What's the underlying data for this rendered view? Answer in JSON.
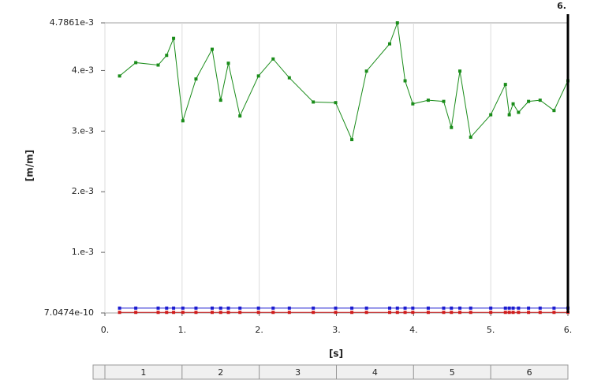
{
  "chart_data": {
    "type": "line",
    "xlabel": "[s]",
    "ylabel": "[m/m]",
    "x": [
      0.19,
      0.4,
      0.69,
      0.8,
      0.89,
      1.01,
      1.18,
      1.39,
      1.5,
      1.6,
      1.75,
      1.99,
      2.18,
      2.39,
      2.7,
      2.99,
      3.2,
      3.39,
      3.69,
      3.79,
      3.89,
      3.99,
      4.19,
      4.39,
      4.49,
      4.6,
      4.74,
      5.0,
      5.19,
      5.24,
      5.29,
      5.36,
      5.49,
      5.64,
      5.82,
      6.0
    ],
    "series": [
      {
        "color": "#1a8c1a",
        "values": [
          0.00391,
          0.00413,
          0.00409,
          0.00425,
          0.00453,
          0.00317,
          0.00386,
          0.00435,
          0.00351,
          0.00412,
          0.00325,
          0.00391,
          0.00419,
          0.00388,
          0.00348,
          0.00347,
          0.00286,
          0.00399,
          0.00444,
          0.0047861,
          0.00383,
          0.00345,
          0.00351,
          0.00349,
          0.00306,
          0.00399,
          0.0029,
          0.00327,
          0.00377,
          0.00327,
          0.00345,
          0.00331,
          0.00349,
          0.00351,
          0.00334,
          0.00383
        ]
      },
      {
        "color": "#1c1cd0",
        "values": [
          8e-05,
          8e-05,
          8e-05,
          8e-05,
          8e-05,
          8e-05,
          8e-05,
          8e-05,
          8e-05,
          8e-05,
          8e-05,
          8e-05,
          8e-05,
          8e-05,
          8e-05,
          8e-05,
          8e-05,
          8e-05,
          8e-05,
          8e-05,
          8e-05,
          8e-05,
          8e-05,
          8e-05,
          8e-05,
          8e-05,
          8e-05,
          8e-05,
          8e-05,
          8e-05,
          8e-05,
          8e-05,
          8e-05,
          8e-05,
          8e-05,
          8e-05
        ]
      },
      {
        "color": "#d01c1c",
        "values": [
          1e-05,
          1e-05,
          1e-05,
          1e-05,
          1e-05,
          1e-05,
          1e-05,
          1e-05,
          1e-05,
          1e-05,
          1e-05,
          1e-05,
          1e-05,
          1e-05,
          1e-05,
          1e-05,
          1e-05,
          1e-05,
          1e-05,
          1e-05,
          1e-05,
          1e-05,
          1e-05,
          1e-05,
          1e-05,
          1e-05,
          1e-05,
          1e-05,
          1e-05,
          1e-05,
          1e-05,
          1e-05,
          1e-05,
          1e-05,
          1e-05,
          1e-05
        ]
      }
    ],
    "xlim": [
      0,
      6
    ],
    "ylim": [
      7.0474e-10,
      0.0047861
    ],
    "xticks": [
      {
        "value": 0,
        "label": "0."
      },
      {
        "value": 1,
        "label": "1."
      },
      {
        "value": 2,
        "label": "2."
      },
      {
        "value": 3,
        "label": "3."
      },
      {
        "value": 4,
        "label": "4."
      },
      {
        "value": 5,
        "label": "5."
      },
      {
        "value": 6,
        "label": "6."
      }
    ],
    "yticks": [
      {
        "value": 7.0474e-10,
        "label": "7.0474e-10"
      },
      {
        "value": 0.001,
        "label": "1.e-3"
      },
      {
        "value": 0.002,
        "label": "2.e-3"
      },
      {
        "value": 0.003,
        "label": "3.e-3"
      },
      {
        "value": 0.004,
        "label": "4.e-3"
      },
      {
        "value": 0.0047861,
        "label": "4.7861e-3"
      }
    ],
    "grid": true,
    "cursor": {
      "value": 6,
      "label": "6."
    },
    "steps": [
      "1",
      "2",
      "3",
      "4",
      "5",
      "6"
    ]
  }
}
